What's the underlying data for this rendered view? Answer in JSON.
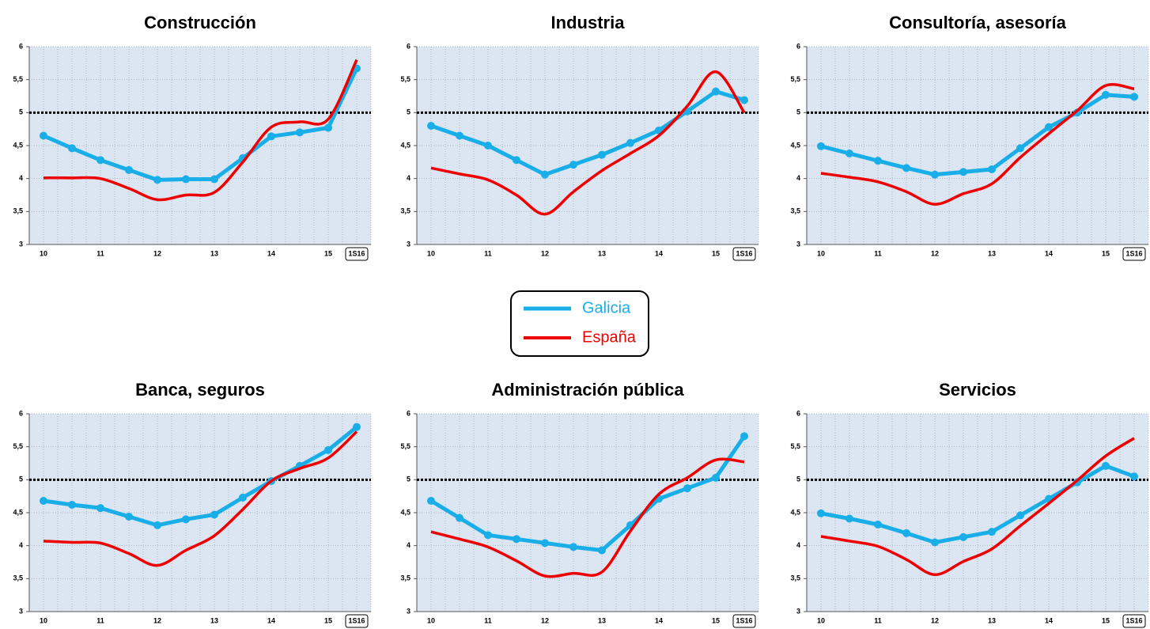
{
  "chart_data": [
    {
      "type": "line",
      "title": "Construcción",
      "categories": [
        "10",
        null,
        "11",
        null,
        "12",
        null,
        "13",
        null,
        "14",
        null,
        "15",
        "1S16"
      ],
      "series": [
        {
          "name": "Galicia",
          "color": "#1aaee8",
          "values": [
            4.65,
            4.46,
            4.28,
            4.13,
            3.98,
            3.99,
            3.99,
            4.31,
            4.64,
            4.7,
            4.77,
            5.67
          ]
        },
        {
          "name": "España",
          "color": "#ee0000",
          "values": [
            4.01,
            4.01,
            4.0,
            3.85,
            3.68,
            3.75,
            3.79,
            4.25,
            4.78,
            4.86,
            4.9,
            5.8
          ]
        }
      ],
      "ylim": [
        3,
        6
      ],
      "yticks": [
        3,
        {
          "value": 3.5,
          "label": "3,5"
        },
        4,
        {
          "value": 4.5,
          "label": "4,5"
        },
        5,
        {
          "value": 5.5,
          "label": "5,5"
        },
        6
      ],
      "ref_line": 5,
      "grid": true
    },
    {
      "type": "line",
      "title": "Industria",
      "categories": [
        "10",
        null,
        "11",
        null,
        "12",
        null,
        "13",
        null,
        "14",
        null,
        "15",
        "1S16"
      ],
      "series": [
        {
          "name": "Galicia",
          "color": "#1aaee8",
          "values": [
            4.8,
            4.65,
            4.5,
            4.28,
            4.06,
            4.21,
            4.36,
            4.54,
            4.73,
            5.02,
            5.32,
            5.19
          ]
        },
        {
          "name": "España",
          "color": "#ee0000",
          "values": [
            4.16,
            4.07,
            3.98,
            3.75,
            3.46,
            3.8,
            4.12,
            4.38,
            4.65,
            5.1,
            5.62,
            5.0
          ]
        }
      ],
      "ylim": [
        3,
        6
      ],
      "yticks": [
        3,
        {
          "value": 3.5,
          "label": "3,5"
        },
        4,
        {
          "value": 4.5,
          "label": "4,5"
        },
        5,
        {
          "value": 5.5,
          "label": "5,5"
        },
        6
      ],
      "ref_line": 5,
      "grid": true
    },
    {
      "type": "line",
      "title": "Consultoría, asesoría",
      "categories": [
        "10",
        null,
        "11",
        null,
        "12",
        null,
        "13",
        null,
        "14",
        null,
        "15",
        "1S16"
      ],
      "series": [
        {
          "name": "Galicia",
          "color": "#1aaee8",
          "values": [
            4.49,
            4.38,
            4.27,
            4.16,
            4.06,
            4.1,
            4.14,
            4.46,
            4.78,
            5.0,
            5.27,
            5.24
          ]
        },
        {
          "name": "España",
          "color": "#ee0000",
          "values": [
            4.08,
            4.02,
            3.95,
            3.8,
            3.61,
            3.77,
            3.92,
            4.32,
            4.68,
            5.03,
            5.41,
            5.36
          ]
        }
      ],
      "ylim": [
        3,
        6
      ],
      "yticks": [
        3,
        {
          "value": 3.5,
          "label": "3,5"
        },
        4,
        {
          "value": 4.5,
          "label": "4,5"
        },
        5,
        {
          "value": 5.5,
          "label": "5,5"
        },
        6
      ],
      "ref_line": 5,
      "grid": true
    },
    {
      "type": "line",
      "title": "Banca, seguros",
      "categories": [
        "10",
        null,
        "11",
        null,
        "12",
        null,
        "13",
        null,
        "14",
        null,
        "15",
        "1S16"
      ],
      "series": [
        {
          "name": "Galicia",
          "color": "#1aaee8",
          "values": [
            4.68,
            4.62,
            4.57,
            4.44,
            4.31,
            4.4,
            4.47,
            4.73,
            4.98,
            5.21,
            5.45,
            5.8
          ]
        },
        {
          "name": "España",
          "color": "#ee0000",
          "values": [
            4.07,
            4.05,
            4.04,
            3.88,
            3.7,
            3.93,
            4.15,
            4.55,
            4.98,
            5.17,
            5.33,
            5.73
          ]
        }
      ],
      "ylim": [
        3,
        6
      ],
      "yticks": [
        3,
        {
          "value": 3.5,
          "label": "3,5"
        },
        4,
        {
          "value": 4.5,
          "label": "4,5"
        },
        5,
        {
          "value": 5.5,
          "label": "5,5"
        },
        6
      ],
      "ref_line": 5,
      "grid": true
    },
    {
      "type": "line",
      "title": "Administración pública",
      "categories": [
        "10",
        null,
        "11",
        null,
        "12",
        null,
        "13",
        null,
        "14",
        null,
        "15",
        "1S16"
      ],
      "series": [
        {
          "name": "Galicia",
          "color": "#1aaee8",
          "values": [
            4.68,
            4.42,
            4.16,
            4.1,
            4.04,
            3.98,
            3.93,
            4.31,
            4.71,
            4.87,
            5.03,
            5.66
          ]
        },
        {
          "name": "España",
          "color": "#ee0000",
          "values": [
            4.21,
            4.1,
            3.98,
            3.77,
            3.54,
            3.58,
            3.6,
            4.22,
            4.78,
            5.03,
            5.3,
            5.27
          ]
        }
      ],
      "ylim": [
        3,
        6
      ],
      "yticks": [
        3,
        {
          "value": 3.5,
          "label": "3,5"
        },
        4,
        {
          "value": 4.5,
          "label": "4,5"
        },
        5,
        {
          "value": 5.5,
          "label": "5,5"
        },
        6
      ],
      "ref_line": 5,
      "grid": true
    },
    {
      "type": "line",
      "title": "Servicios",
      "categories": [
        "10",
        null,
        "11",
        null,
        "12",
        null,
        "13",
        null,
        "14",
        null,
        "15",
        "1S16"
      ],
      "series": [
        {
          "name": "Galicia",
          "color": "#1aaee8",
          "values": [
            4.49,
            4.41,
            4.32,
            4.19,
            4.05,
            4.13,
            4.21,
            4.46,
            4.71,
            4.96,
            5.21,
            5.05
          ]
        },
        {
          "name": "España",
          "color": "#ee0000",
          "values": [
            4.14,
            4.07,
            3.99,
            3.79,
            3.56,
            3.76,
            3.95,
            4.3,
            4.64,
            4.99,
            5.36,
            5.63
          ]
        }
      ],
      "ylim": [
        3,
        6
      ],
      "yticks": [
        3,
        {
          "value": 3.5,
          "label": "3,5"
        },
        4,
        {
          "value": 4.5,
          "label": "4,5"
        },
        5,
        {
          "value": 5.5,
          "label": "5,5"
        },
        6
      ],
      "ref_line": 5,
      "grid": true
    }
  ]
}
